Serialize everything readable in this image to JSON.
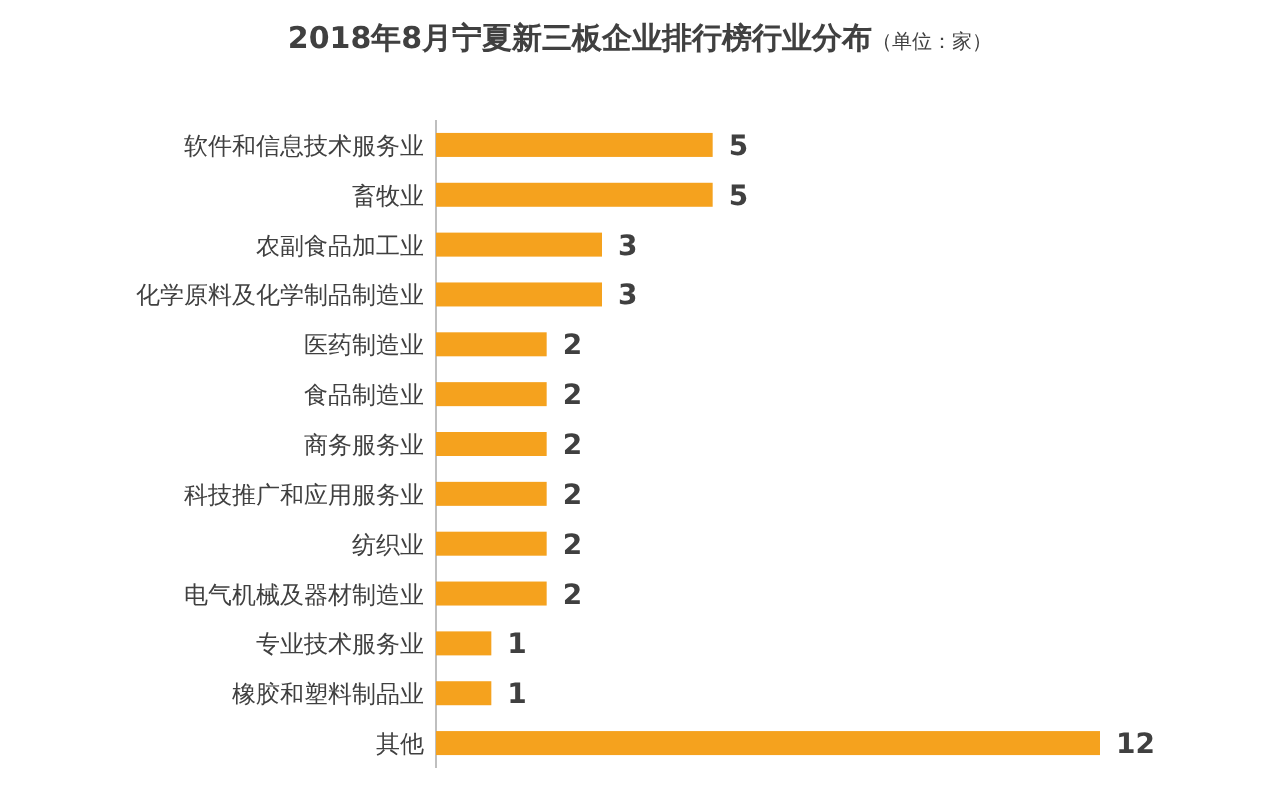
{
  "chart_data": {
    "type": "bar",
    "orientation": "horizontal",
    "title": "2018年8月宁夏新三板企业排行榜行业分布",
    "subtitle": "（单位：家）",
    "categories": [
      "软件和信息技术服务业",
      "畜牧业",
      "农副食品加工业",
      "化学原料及化学制品制造业",
      "医药制造业",
      "食品制造业",
      "商务服务业",
      "科技推广和应用服务业",
      "纺织业",
      "电气机械及器材制造业",
      "专业技术服务业",
      "橡胶和塑料制品业",
      "其他"
    ],
    "values": [
      5,
      5,
      3,
      3,
      2,
      2,
      2,
      2,
      2,
      2,
      1,
      1,
      12
    ],
    "color": "#f5a21e",
    "data_labels": true
  }
}
